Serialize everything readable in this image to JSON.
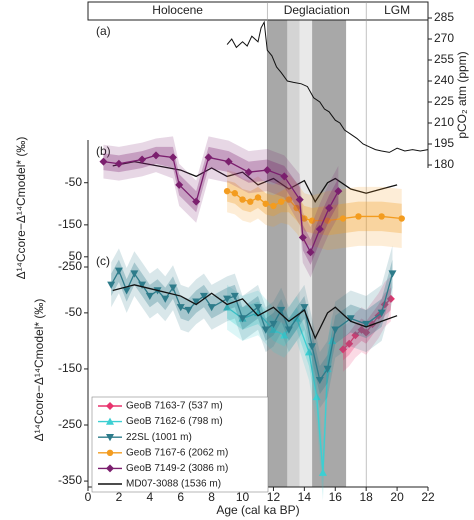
{
  "chart_data": [
    {
      "type": "line",
      "panel": "(a)",
      "y_label": "pCO₂ atm (ppm)",
      "ylim": [
        180,
        285
      ],
      "yticks": [
        285,
        270,
        255,
        240,
        225,
        210,
        195,
        180
      ],
      "periods": [
        {
          "label": "Holocene",
          "start": 0,
          "end": 11.6
        },
        {
          "label": "Deglaciation",
          "start": 11.6,
          "end": 18
        },
        {
          "label": "LGM",
          "start": 18,
          "end": 22
        }
      ],
      "series": [
        {
          "color": "#111111",
          "x": [
            9.0,
            9.3,
            9.6,
            10.0,
            10.3,
            10.6,
            11.0,
            11.2,
            11.4,
            11.6,
            11.9,
            12.2,
            12.5,
            12.9,
            13.3,
            13.8,
            14.2,
            14.6,
            15.0,
            15.3,
            15.6,
            16.0,
            16.3,
            16.6,
            17.0,
            17.4,
            17.8,
            18.2,
            18.6,
            19.0,
            19.5,
            20.0,
            20.5,
            21.0,
            21.5,
            22.0
          ],
          "values": [
            266,
            270,
            264,
            268,
            265,
            272,
            268,
            278,
            282,
            262,
            258,
            250,
            246,
            240,
            239,
            238,
            236,
            228,
            225,
            220,
            218,
            212,
            210,
            205,
            202,
            199,
            195,
            193,
            191,
            190,
            189,
            192,
            190,
            191,
            190,
            191
          ]
        }
      ]
    },
    {
      "type": "line",
      "panel": "(b)",
      "y_label": "Δ¹⁴Ccore−Δ¹⁴Cmodel* (‰)",
      "ylim": [
        -250,
        30
      ],
      "yticks": [
        -50,
        -150,
        -250
      ],
      "bands": [
        {
          "start": 11.6,
          "end": 12.9,
          "color": "#a8a8a8"
        },
        {
          "start": 12.9,
          "end": 13.7,
          "color": "#d4d4d4"
        },
        {
          "start": 13.7,
          "end": 14.5,
          "color": "#e9e9e9"
        },
        {
          "start": 14.5,
          "end": 16.7,
          "color": "#a8a8a8"
        }
      ],
      "series": [
        {
          "name": "GeoB 7167-6 (2062 m)",
          "color": "#f39c1f",
          "marker": "circle",
          "x": [
            9.0,
            9.5,
            10.0,
            10.5,
            11.0,
            11.5,
            12.0,
            12.5,
            13.0,
            13.5,
            14.0,
            14.5,
            15.5,
            16.5,
            17.5,
            19.0,
            20.3
          ],
          "values": [
            -70,
            -75,
            -90,
            -95,
            -85,
            -100,
            -105,
            -95,
            -90,
            -110,
            -135,
            -140,
            -140,
            -135,
            -130,
            -130,
            -135
          ],
          "errors": [
            25,
            25,
            25,
            25,
            25,
            25,
            25,
            25,
            30,
            30,
            30,
            30,
            35,
            35,
            35,
            35,
            35
          ]
        },
        {
          "name": "GeoB 7149-2 (3086 m)",
          "color": "#7b1f6e",
          "marker": "diamond",
          "x": [
            1.0,
            2.0,
            3.5,
            4.4,
            5.5,
            5.9,
            7.0,
            7.8,
            9.1,
            10.4,
            11.6,
            12.7,
            13.7,
            13.9,
            14.4,
            15.0,
            15.6,
            16.2
          ],
          "values": [
            0,
            -5,
            5,
            15,
            10,
            -55,
            -95,
            10,
            0,
            -25,
            -20,
            -35,
            -90,
            -180,
            -215,
            -160,
            -110,
            -70
          ],
          "errors": [
            20,
            20,
            20,
            20,
            25,
            25,
            25,
            25,
            25,
            25,
            25,
            25,
            30,
            30,
            30,
            30,
            30,
            30
          ]
        }
      ]
    },
    {
      "type": "line",
      "panel": "(c)",
      "y_label": "Δ¹⁴Ccore−Δ¹⁴Cmodel* (‰)",
      "x_label": "Age (cal ka BP)",
      "xlim": [
        0,
        22
      ],
      "xticks": [
        0,
        2,
        4,
        6,
        8,
        10,
        12,
        14,
        16,
        18,
        20,
        22
      ],
      "ylim": [
        -357,
        55
      ],
      "yticks": [
        50,
        -50,
        -150,
        -250,
        -350
      ],
      "series": [
        {
          "name": "GeoB 7163-7 (537 m)",
          "color": "#e8336d",
          "marker": "diamond",
          "x": [
            16.5,
            16.9,
            17.3,
            17.7,
            18.0,
            18.4,
            18.8,
            19.2,
            19.6
          ],
          "values": [
            -115,
            -105,
            -90,
            -80,
            -85,
            -70,
            -55,
            -35,
            -25
          ],
          "errors": [
            20,
            20,
            20,
            20,
            20,
            20,
            20,
            20,
            20
          ]
        },
        {
          "name": "GeoB 7162-6 (798 m)",
          "color": "#3ccfd2",
          "marker": "triangle",
          "x": [
            9.0,
            10.0,
            11.0,
            12.0,
            12.7,
            13.5,
            14.3,
            14.8,
            15.2,
            15.5,
            15.8
          ],
          "values": [
            -40,
            -60,
            -50,
            -80,
            -90,
            -60,
            -120,
            -200,
            -335,
            -150,
            -100
          ],
          "errors": [
            20,
            20,
            20,
            20,
            20,
            20,
            25,
            25,
            25,
            25,
            25
          ]
        },
        {
          "name": "22SL (1001 m)",
          "color": "#2d7b8a",
          "marker": "triangle-down",
          "x": [
            1.5,
            2.0,
            2.5,
            3.0,
            3.5,
            4.0,
            4.5,
            5.0,
            5.5,
            6.0,
            6.5,
            7.0,
            7.5,
            8.0,
            9.0,
            9.5,
            10.0,
            11.0,
            11.5,
            12.0,
            12.5,
            13.0,
            14.0,
            14.5,
            15.0,
            15.5,
            16.0,
            17.0,
            18.0,
            19.0,
            19.7
          ],
          "values": [
            0,
            25,
            -10,
            20,
            0,
            -20,
            -10,
            -25,
            -5,
            -40,
            -45,
            -30,
            -20,
            -40,
            -25,
            -20,
            -60,
            -40,
            -80,
            -70,
            -45,
            -80,
            -40,
            -110,
            -170,
            -150,
            -80,
            -60,
            -70,
            -50,
            20
          ],
          "errors": [
            20,
            20,
            20,
            20,
            20,
            20,
            20,
            20,
            20,
            20,
            20,
            20,
            20,
            20,
            20,
            20,
            20,
            20,
            20,
            20,
            20,
            20,
            20,
            25,
            25,
            25,
            25,
            25,
            25,
            25,
            25
          ]
        },
        {
          "name": "MD07-3088 (1536 m)",
          "color": "#111111",
          "marker": "none",
          "x": [
            1.6,
            3.0,
            4.5,
            6.0,
            7.0,
            8.0,
            9.0,
            10.0,
            11.0,
            12.0,
            13.0,
            14.0,
            14.7,
            15.5,
            16.0,
            17.0,
            18.0,
            19.0,
            20.0
          ],
          "values": [
            -10,
            0,
            -10,
            -20,
            -35,
            -15,
            -35,
            -25,
            -55,
            -40,
            -65,
            -45,
            -95,
            -50,
            -40,
            -65,
            -75,
            -65,
            -55
          ]
        }
      ]
    }
  ]
}
